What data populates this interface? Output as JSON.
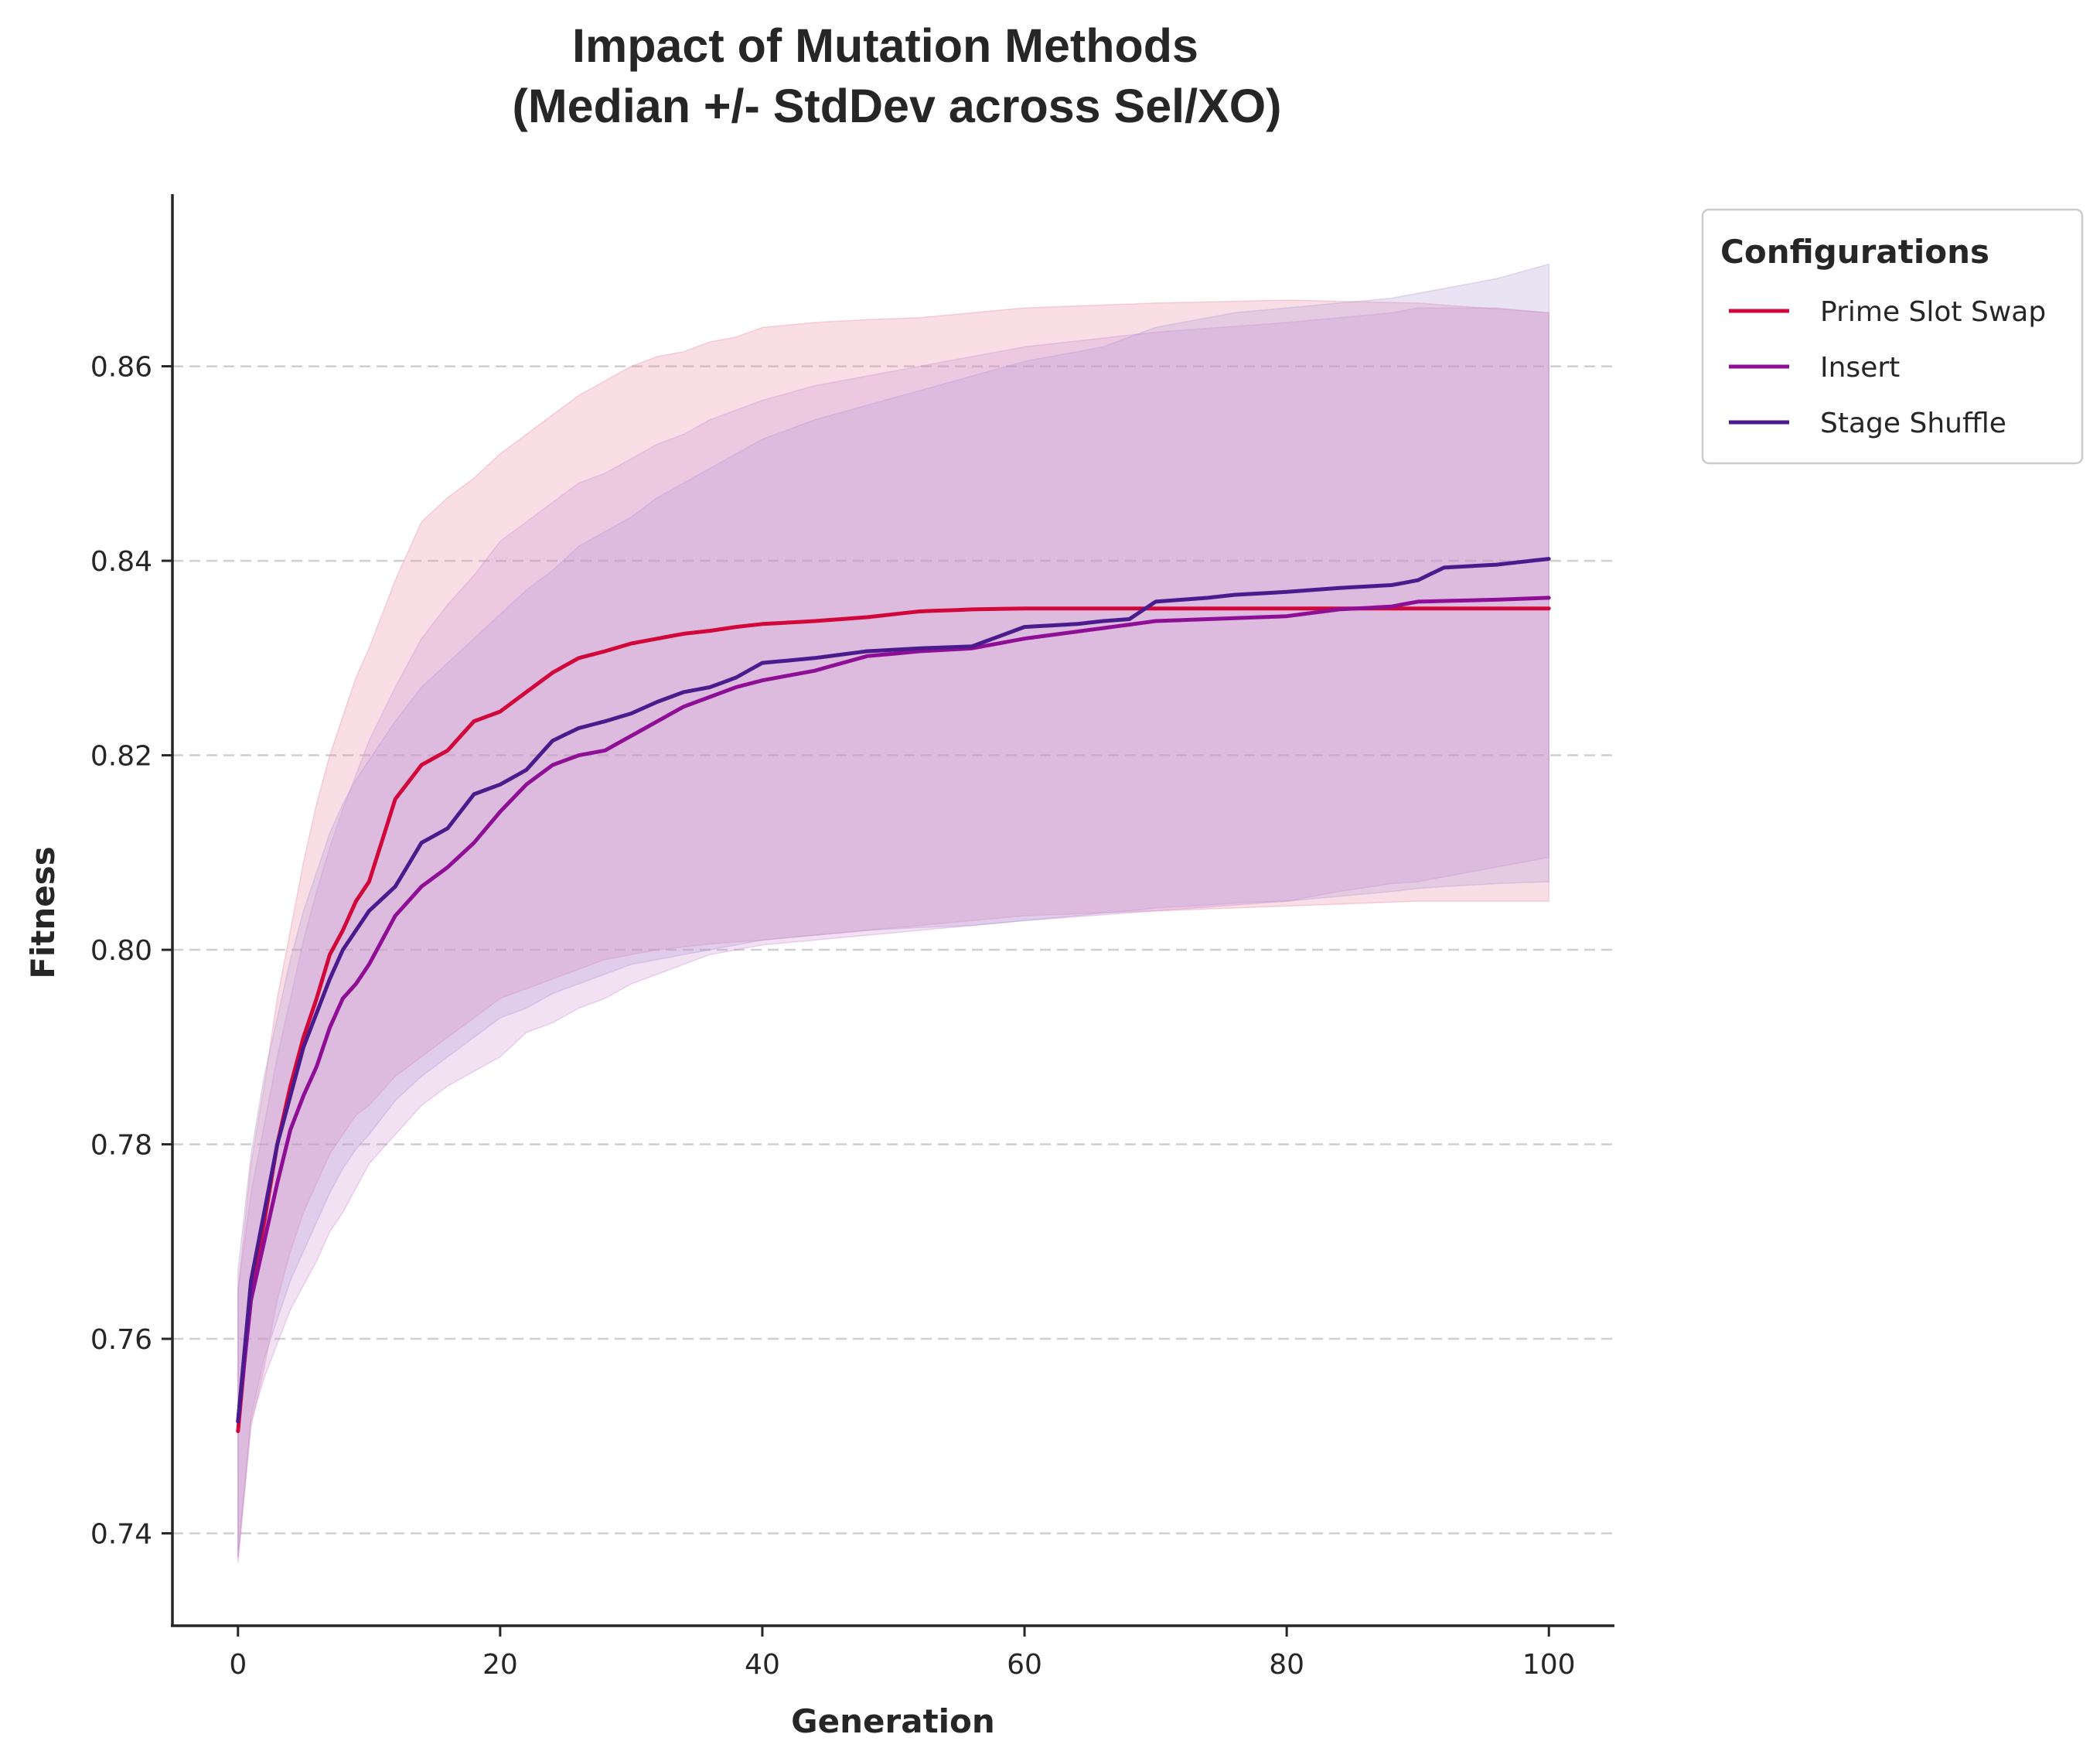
{
  "chart_data": {
    "type": "line",
    "title": "Impact of Mutation Methods",
    "subtitle": "(Median +/- StdDev across Sel/XO)",
    "xlabel": "Generation",
    "ylabel": "Fitness",
    "xlim": [
      -5,
      105
    ],
    "ylim": [
      0.7305,
      0.8777
    ],
    "xticks": [
      0,
      20,
      40,
      60,
      80,
      100
    ],
    "yticks": [
      0.74,
      0.76,
      0.78,
      0.8,
      0.82,
      0.84,
      0.86
    ],
    "ytick_labels": [
      "0.74",
      "0.76",
      "0.78",
      "0.80",
      "0.82",
      "0.84",
      "0.86"
    ],
    "grid": "horizontal dashed",
    "legend": {
      "title": "Configurations",
      "placement": "outside top-right"
    },
    "band": "median +/- std dev",
    "series": [
      {
        "name": "Prime Slot Swap",
        "color": "#d1073a",
        "band_color": "#e88aa6",
        "x": [
          0,
          1,
          2,
          3,
          4,
          5,
          6,
          7,
          8,
          9,
          10,
          12,
          14,
          16,
          18,
          20,
          22,
          24,
          26,
          28,
          30,
          32,
          34,
          36,
          38,
          40,
          44,
          48,
          52,
          56,
          60,
          70,
          80,
          90,
          100
        ],
        "values": [
          0.7505,
          0.765,
          0.772,
          0.78,
          0.786,
          0.791,
          0.795,
          0.7995,
          0.802,
          0.805,
          0.807,
          0.8155,
          0.819,
          0.8205,
          0.8235,
          0.8245,
          0.8265,
          0.8285,
          0.83,
          0.8307,
          0.8315,
          0.832,
          0.8325,
          0.8328,
          0.8332,
          0.8335,
          0.8338,
          0.8342,
          0.8348,
          0.835,
          0.8351,
          0.8351,
          0.8351,
          0.8351,
          0.8351
        ],
        "upper": [
          0.765,
          0.778,
          0.786,
          0.795,
          0.802,
          0.809,
          0.815,
          0.82,
          0.824,
          0.828,
          0.831,
          0.838,
          0.844,
          0.8465,
          0.8485,
          0.851,
          0.853,
          0.855,
          0.857,
          0.8585,
          0.86,
          0.861,
          0.8615,
          0.8625,
          0.863,
          0.864,
          0.8645,
          0.8648,
          0.865,
          0.8655,
          0.866,
          0.8665,
          0.8668,
          0.8665,
          0.8655
        ],
        "lower": [
          0.737,
          0.751,
          0.757,
          0.764,
          0.769,
          0.773,
          0.776,
          0.779,
          0.781,
          0.783,
          0.784,
          0.787,
          0.789,
          0.791,
          0.793,
          0.795,
          0.796,
          0.797,
          0.798,
          0.799,
          0.7995,
          0.8,
          0.8003,
          0.8006,
          0.8008,
          0.801,
          0.8015,
          0.802,
          0.8025,
          0.803,
          0.8035,
          0.804,
          0.8045,
          0.805,
          0.805
        ]
      },
      {
        "name": "Insert",
        "color": "#8e0f96",
        "band_color": "#cf8ed4",
        "x": [
          0,
          1,
          2,
          3,
          4,
          5,
          6,
          7,
          8,
          9,
          10,
          12,
          14,
          16,
          18,
          20,
          22,
          24,
          26,
          28,
          30,
          32,
          34,
          36,
          38,
          40,
          44,
          48,
          52,
          56,
          60,
          70,
          80,
          84,
          88,
          90,
          96,
          100
        ],
        "values": [
          0.7515,
          0.764,
          0.77,
          0.776,
          0.7815,
          0.785,
          0.788,
          0.792,
          0.795,
          0.7965,
          0.7985,
          0.8035,
          0.8065,
          0.8085,
          0.811,
          0.8142,
          0.817,
          0.819,
          0.82,
          0.8205,
          0.822,
          0.8235,
          0.825,
          0.826,
          0.827,
          0.8277,
          0.8287,
          0.8302,
          0.8307,
          0.831,
          0.832,
          0.8338,
          0.8343,
          0.835,
          0.8353,
          0.8358,
          0.836,
          0.8362
        ],
        "upper": [
          0.765,
          0.775,
          0.782,
          0.789,
          0.795,
          0.801,
          0.806,
          0.8105,
          0.8145,
          0.818,
          0.8215,
          0.827,
          0.832,
          0.8355,
          0.8385,
          0.842,
          0.844,
          0.846,
          0.848,
          0.849,
          0.8505,
          0.852,
          0.853,
          0.8545,
          0.8555,
          0.8565,
          0.858,
          0.859,
          0.86,
          0.861,
          0.862,
          0.8635,
          0.8645,
          0.865,
          0.8655,
          0.866,
          0.866,
          0.8655
        ],
        "lower": [
          0.7375,
          0.7515,
          0.756,
          0.7595,
          0.763,
          0.7655,
          0.768,
          0.771,
          0.773,
          0.7755,
          0.778,
          0.781,
          0.784,
          0.786,
          0.7875,
          0.789,
          0.7915,
          0.7925,
          0.794,
          0.795,
          0.7965,
          0.7975,
          0.7985,
          0.7995,
          0.8,
          0.8005,
          0.801,
          0.8015,
          0.802,
          0.8025,
          0.803,
          0.804,
          0.805,
          0.806,
          0.8068,
          0.807,
          0.8085,
          0.8095
        ]
      },
      {
        "name": "Stage Shuffle",
        "color": "#4b1a8c",
        "band_color": "#b39ad6",
        "x": [
          0,
          1,
          2,
          3,
          4,
          5,
          6,
          7,
          8,
          9,
          10,
          12,
          14,
          16,
          18,
          20,
          22,
          24,
          26,
          28,
          30,
          32,
          34,
          36,
          38,
          40,
          44,
          48,
          52,
          56,
          60,
          64,
          66,
          68,
          70,
          74,
          76,
          80,
          84,
          88,
          90,
          92,
          96,
          100
        ],
        "values": [
          0.7515,
          0.766,
          0.773,
          0.78,
          0.785,
          0.79,
          0.7935,
          0.797,
          0.8,
          0.802,
          0.804,
          0.8065,
          0.811,
          0.8125,
          0.816,
          0.817,
          0.8185,
          0.8215,
          0.8228,
          0.8235,
          0.8243,
          0.8255,
          0.8265,
          0.827,
          0.828,
          0.8295,
          0.83,
          0.8307,
          0.831,
          0.8312,
          0.8332,
          0.8335,
          0.8338,
          0.834,
          0.8358,
          0.8362,
          0.8365,
          0.8368,
          0.8372,
          0.8375,
          0.838,
          0.8393,
          0.8396,
          0.8402
        ],
        "upper": [
          0.767,
          0.779,
          0.787,
          0.793,
          0.799,
          0.804,
          0.808,
          0.812,
          0.815,
          0.8175,
          0.8195,
          0.8235,
          0.827,
          0.8295,
          0.832,
          0.8345,
          0.837,
          0.839,
          0.8415,
          0.843,
          0.8445,
          0.8465,
          0.848,
          0.8495,
          0.851,
          0.8525,
          0.8545,
          0.856,
          0.8575,
          0.859,
          0.8605,
          0.8615,
          0.862,
          0.863,
          0.864,
          0.865,
          0.8655,
          0.866,
          0.8665,
          0.867,
          0.8675,
          0.868,
          0.869,
          0.8705
        ],
        "lower": [
          0.7375,
          0.752,
          0.758,
          0.762,
          0.766,
          0.769,
          0.772,
          0.775,
          0.7775,
          0.7795,
          0.781,
          0.7845,
          0.787,
          0.789,
          0.791,
          0.793,
          0.794,
          0.7955,
          0.7965,
          0.7975,
          0.7985,
          0.799,
          0.7995,
          0.8,
          0.8005,
          0.801,
          0.8015,
          0.802,
          0.8023,
          0.8025,
          0.803,
          0.8035,
          0.8038,
          0.804,
          0.8043,
          0.8046,
          0.8048,
          0.805,
          0.8055,
          0.806,
          0.8063,
          0.8065,
          0.8068,
          0.807
        ]
      }
    ]
  }
}
